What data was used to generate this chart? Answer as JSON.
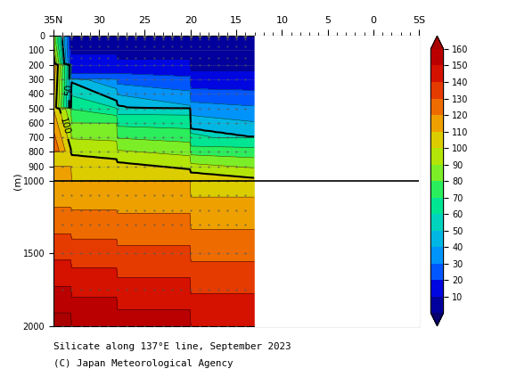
{
  "title_line1": "Silicate along 137°E line, September 2023",
  "title_line2": "(C) Japan Meteorological Agency",
  "xlabel_top_labels": [
    "35N",
    "30",
    "25",
    "20",
    "15",
    "10",
    "5",
    "0",
    "5S"
  ],
  "xlabel_top_positions": [
    35,
    30,
    25,
    20,
    15,
    10,
    5,
    0,
    -5
  ],
  "ylabel": "(m)",
  "ylim": [
    2000,
    0
  ],
  "xlim": [
    35,
    -5
  ],
  "colorbar_ticks": [
    10,
    20,
    30,
    40,
    50,
    60,
    70,
    80,
    90,
    100,
    110,
    120,
    130,
    140,
    150,
    160
  ],
  "highlight_contours": [
    50,
    100
  ],
  "hline_depth": 1000,
  "data_east_limit": 13.5,
  "background_color": "white"
}
